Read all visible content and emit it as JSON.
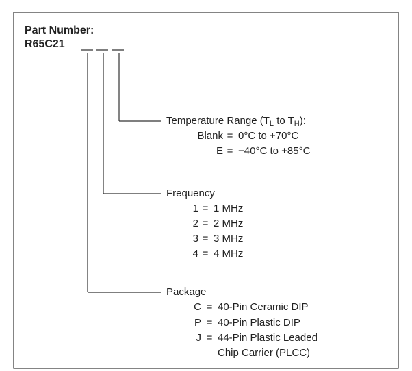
{
  "title": "Part Number:",
  "part_number": "R65C21",
  "separator": "=",
  "fields": [
    {
      "label": [
        {
          "text": "Temperature Range (T"
        },
        {
          "text": "L",
          "sub": true
        },
        {
          "text": " to T"
        },
        {
          "text": "H",
          "sub": true
        },
        {
          "text": "):"
        }
      ],
      "options": [
        {
          "code": "Blank",
          "desc": [
            "0°C to +70°C"
          ]
        },
        {
          "code": "E",
          "desc": [
            "−40°C to +85°C"
          ]
        }
      ]
    },
    {
      "label": [
        {
          "text": "Frequency"
        }
      ],
      "options": [
        {
          "code": "1",
          "desc": [
            "1 MHz"
          ]
        },
        {
          "code": "2",
          "desc": [
            "2 MHz"
          ]
        },
        {
          "code": "3",
          "desc": [
            "3 MHz"
          ]
        },
        {
          "code": "4",
          "desc": [
            "4 MHz"
          ]
        }
      ]
    },
    {
      "label": [
        {
          "text": "Package"
        }
      ],
      "options": [
        {
          "code": "C",
          "desc": [
            "40-Pin Ceramic DIP"
          ]
        },
        {
          "code": "P",
          "desc": [
            "40-Pin Plastic DIP"
          ]
        },
        {
          "code": "J",
          "desc": [
            "44-Pin Plastic Leaded",
            "Chip Carrier (PLCC)"
          ]
        }
      ]
    }
  ]
}
